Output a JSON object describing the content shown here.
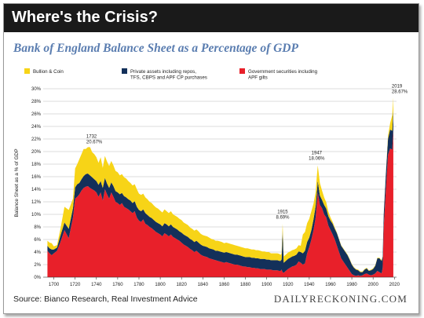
{
  "header": {
    "title": "Where's the Crisis?"
  },
  "subtitle": "Bank of England Balance Sheet as a Percentage of GDP",
  "footer": {
    "source": "Source: Bianco Research, Real Investment Advice",
    "brand": "DAILYRECKONING.COM"
  },
  "colors": {
    "bullion": "#f7d417",
    "private": "#13305a",
    "government": "#e8202a"
  },
  "chart_data": {
    "type": "area",
    "ylabel": "Balance Sheet as a % of GDP",
    "xlim": [
      1690,
      2022
    ],
    "ylim": [
      0,
      30
    ],
    "grid": true,
    "legend_position": "top",
    "x_ticks": [
      1700,
      1720,
      1740,
      1760,
      1780,
      1800,
      1820,
      1840,
      1860,
      1880,
      1900,
      1920,
      1940,
      1960,
      1980,
      2000,
      2020
    ],
    "y_ticks": [
      0,
      2,
      4,
      6,
      8,
      10,
      12,
      14,
      16,
      18,
      20,
      22,
      24,
      26,
      28,
      30
    ],
    "legend": [
      {
        "name": "Bullion & Coin",
        "color": "#f7d417"
      },
      {
        "name": "Private assets including repos, TFS, CBPS and APF CP purchases",
        "color": "#13305a"
      },
      {
        "name": "Government securities including APF gilts",
        "color": "#e8202a"
      }
    ],
    "x": [
      1694,
      1696,
      1698,
      1700,
      1703,
      1706,
      1710,
      1714,
      1718,
      1720,
      1722,
      1724,
      1726,
      1728,
      1730,
      1732,
      1734,
      1736,
      1738,
      1740,
      1742,
      1744,
      1746,
      1748,
      1750,
      1752,
      1754,
      1756,
      1758,
      1760,
      1762,
      1764,
      1766,
      1768,
      1770,
      1772,
      1774,
      1776,
      1778,
      1780,
      1782,
      1784,
      1786,
      1788,
      1790,
      1792,
      1794,
      1796,
      1798,
      1800,
      1802,
      1804,
      1806,
      1808,
      1810,
      1812,
      1814,
      1816,
      1818,
      1820,
      1822,
      1824,
      1826,
      1828,
      1830,
      1832,
      1834,
      1836,
      1838,
      1840,
      1842,
      1844,
      1846,
      1848,
      1850,
      1852,
      1854,
      1856,
      1858,
      1860,
      1862,
      1864,
      1866,
      1868,
      1870,
      1872,
      1874,
      1876,
      1878,
      1880,
      1882,
      1884,
      1886,
      1888,
      1890,
      1892,
      1894,
      1896,
      1898,
      1900,
      1902,
      1904,
      1906,
      1908,
      1910,
      1912,
      1913,
      1914,
      1915,
      1916,
      1918,
      1920,
      1922,
      1924,
      1926,
      1928,
      1930,
      1932,
      1934,
      1936,
      1938,
      1940,
      1942,
      1944,
      1946,
      1947,
      1948,
      1950,
      1952,
      1954,
      1956,
      1958,
      1960,
      1962,
      1964,
      1966,
      1968,
      1970,
      1972,
      1974,
      1976,
      1978,
      1980,
      1982,
      1984,
      1986,
      1988,
      1990,
      1992,
      1994,
      1996,
      1998,
      2000,
      2002,
      2004,
      2006,
      2008,
      2009,
      2010,
      2012,
      2014,
      2016,
      2018,
      2019
    ],
    "series": [
      {
        "name": "Government securities including APF gilts",
        "values": [
          4.2,
          3.8,
          3.5,
          3.8,
          4.2,
          5.5,
          7.5,
          6.2,
          9.5,
          12.5,
          12.8,
          13.2,
          13.8,
          14.2,
          14.4,
          14.5,
          14.2,
          14.0,
          13.8,
          13.5,
          12.8,
          13.5,
          12.2,
          14.0,
          13.2,
          12.5,
          13.5,
          12.8,
          12.0,
          11.8,
          11.5,
          11.8,
          11.2,
          11.0,
          10.8,
          10.5,
          10.2,
          10.5,
          9.5,
          9.0,
          8.8,
          9.2,
          8.5,
          8.3,
          8.0,
          7.8,
          7.5,
          7.2,
          7.0,
          6.8,
          6.5,
          7.0,
          6.8,
          6.5,
          6.8,
          6.4,
          6.2,
          6.0,
          5.8,
          5.5,
          5.2,
          5.0,
          4.8,
          4.5,
          4.3,
          4.0,
          4.2,
          3.9,
          3.6,
          3.4,
          3.3,
          3.2,
          3.0,
          2.9,
          2.8,
          2.7,
          2.6,
          2.5,
          2.4,
          2.3,
          2.4,
          2.3,
          2.2,
          2.1,
          2.0,
          2.0,
          1.9,
          1.8,
          1.7,
          1.7,
          1.6,
          1.6,
          1.5,
          1.5,
          1.4,
          1.4,
          1.3,
          1.3,
          1.3,
          1.2,
          1.2,
          1.2,
          1.1,
          1.1,
          1.1,
          1.0,
          1.0,
          1.2,
          0.8,
          0.7,
          1.0,
          1.3,
          1.5,
          1.7,
          1.8,
          2.0,
          2.5,
          2.3,
          2.0,
          2.2,
          3.8,
          4.8,
          6.0,
          7.5,
          9.5,
          11.5,
          13.5,
          11.5,
          11.0,
          10.0,
          9.5,
          8.2,
          7.5,
          6.8,
          6.0,
          5.0,
          4.0,
          3.0,
          2.5,
          2.0,
          1.5,
          1.0,
          0.5,
          0.3,
          0.2,
          0.3,
          0.2,
          0.3,
          0.5,
          0.6,
          0.4,
          0.3,
          0.4,
          0.6,
          1.0,
          0.8,
          0.6,
          1.5,
          8.0,
          14.0,
          19.5,
          20.5,
          20.3,
          23.5
        ]
      },
      {
        "name": "Private assets including repos, TFS, CBPS and APF CP purchases",
        "values": [
          0.8,
          0.8,
          0.9,
          0.6,
          0.5,
          1.0,
          1.2,
          1.5,
          1.5,
          1.8,
          2.0,
          1.8,
          1.8,
          1.9,
          2.0,
          2.0,
          2.0,
          1.9,
          1.8,
          1.8,
          1.9,
          1.8,
          2.0,
          1.8,
          1.7,
          1.7,
          1.6,
          1.7,
          1.7,
          1.7,
          1.7,
          1.6,
          1.7,
          1.7,
          1.6,
          1.7,
          1.6,
          1.6,
          1.7,
          1.7,
          1.7,
          1.6,
          1.7,
          1.6,
          1.6,
          1.6,
          1.6,
          1.6,
          1.6,
          1.6,
          1.6,
          1.6,
          1.6,
          1.6,
          1.6,
          1.6,
          1.6,
          1.6,
          1.5,
          1.6,
          1.6,
          1.6,
          1.6,
          1.6,
          1.6,
          1.6,
          1.6,
          1.6,
          1.6,
          1.6,
          1.6,
          1.6,
          1.6,
          1.6,
          1.6,
          1.5,
          1.6,
          1.6,
          1.6,
          1.6,
          1.6,
          1.6,
          1.6,
          1.6,
          1.6,
          1.6,
          1.6,
          1.6,
          1.6,
          1.5,
          1.6,
          1.6,
          1.6,
          1.6,
          1.6,
          1.6,
          1.6,
          1.6,
          1.6,
          1.6,
          1.6,
          1.5,
          1.6,
          1.6,
          1.6,
          1.6,
          1.6,
          1.6,
          6.7,
          1.6,
          1.6,
          1.6,
          1.6,
          1.6,
          1.6,
          1.6,
          1.6,
          1.7,
          1.8,
          2.0,
          1.8,
          1.5,
          1.5,
          1.7,
          1.8,
          1.8,
          1.8,
          1.5,
          1.3,
          1.5,
          1.4,
          1.5,
          1.5,
          1.7,
          1.7,
          2.0,
          2.0,
          2.0,
          2.0,
          2.0,
          2.0,
          1.8,
          1.5,
          1.2,
          1.0,
          0.8,
          0.6,
          0.5,
          0.7,
          0.8,
          0.6,
          0.8,
          0.9,
          1.2,
          2.0,
          2.2,
          2.0,
          1.8,
          2.0,
          2.5,
          2.5,
          3.0,
          3.0,
          3.1
        ]
      },
      {
        "name": "Bullion & Coin",
        "values": [
          0.8,
          0.9,
          1.0,
          0.5,
          0.4,
          1.0,
          2.5,
          3.0,
          1.5,
          3.0,
          3.2,
          3.8,
          4.0,
          4.3,
          4.0,
          4.2,
          4.5,
          4.0,
          4.0,
          3.8,
          3.5,
          3.8,
          3.2,
          3.5,
          3.5,
          3.5,
          3.4,
          3.3,
          3.2,
          3.2,
          3.0,
          3.0,
          3.0,
          3.0,
          2.9,
          2.8,
          2.8,
          2.7,
          2.8,
          2.6,
          2.6,
          2.5,
          2.5,
          2.5,
          2.4,
          2.4,
          2.3,
          2.3,
          2.3,
          2.2,
          2.2,
          2.2,
          2.1,
          2.1,
          2.1,
          2.0,
          2.0,
          2.0,
          2.0,
          2.0,
          1.9,
          1.9,
          1.9,
          1.8,
          1.8,
          1.8,
          1.8,
          1.8,
          1.7,
          1.7,
          1.7,
          1.7,
          1.7,
          1.6,
          1.6,
          1.6,
          1.6,
          1.6,
          1.6,
          1.5,
          1.5,
          1.5,
          1.5,
          1.5,
          1.5,
          1.4,
          1.4,
          1.4,
          1.4,
          1.4,
          1.4,
          1.3,
          1.3,
          1.3,
          1.3,
          1.3,
          1.3,
          1.2,
          1.2,
          1.2,
          1.2,
          1.1,
          1.1,
          1.1,
          1.1,
          1.1,
          0.93,
          1.0,
          1.0,
          1.0,
          1.0,
          1.0,
          1.0,
          1.0,
          1.0,
          1.0,
          1.0,
          1.0,
          3.0,
          3.0,
          3.0,
          3.0,
          3.0,
          2.5,
          2.2,
          2.5,
          2.5,
          2.0,
          1.5,
          1.2,
          1.0,
          0.7,
          0.5,
          0.3,
          0.2,
          0.1,
          0.1,
          0.1,
          0.1,
          0.1,
          0.1,
          0.1,
          0.1,
          0.1,
          0.1,
          0.1,
          0.1,
          0.1,
          0.1,
          0.1,
          0.1,
          0.1,
          0.1,
          0.1,
          0.1,
          0.1,
          0.1,
          0.1,
          0.1,
          0.1,
          0.5,
          1.0,
          2.5,
          2.0
        ]
      }
    ],
    "annotations": [
      {
        "x": 1732,
        "y": 20.67,
        "label_line1": "1732",
        "label_line2": "20.67%",
        "anchor": "start"
      },
      {
        "x": 1915,
        "y": 8.69,
        "label_line1": "1915",
        "label_line2": "8.69%",
        "anchor": "middle"
      },
      {
        "x": 1947,
        "y": 18.06,
        "label_line1": "1947",
        "label_line2": "18.06%",
        "anchor": "middle"
      },
      {
        "x": 2019,
        "y": 28.67,
        "label_line1": "2019",
        "label_line2": "28.67%",
        "anchor": "start"
      }
    ]
  }
}
